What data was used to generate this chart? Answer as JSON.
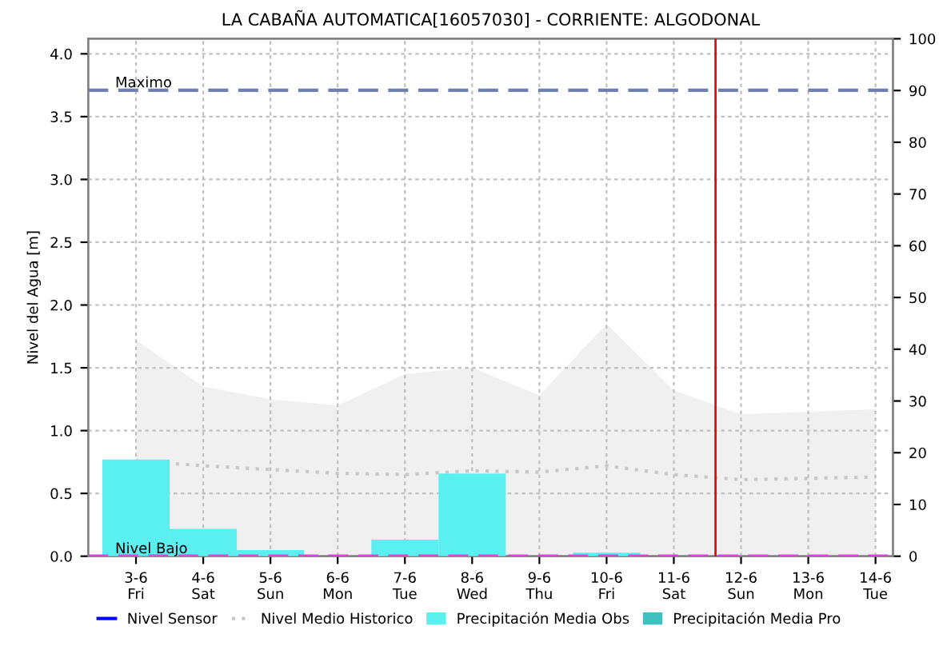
{
  "chart_data": {
    "type": "line",
    "title": "LA CABAÑA AUTOMATICA[16057030] - CORRIENTE: ALGODONAL",
    "ylabel": "Nivel del Agua [m]",
    "categories": [
      "3-6\nFri",
      "4-6\nSat",
      "5-6\nSun",
      "6-6\nMon",
      "7-6\nTue",
      "8-6\nWed",
      "9-6\nThu",
      "10-6\nFri",
      "11-6\nSat",
      "12-6\nSun",
      "13-6\nMon",
      "14-6\nTue"
    ],
    "ylim": [
      0,
      4.12
    ],
    "yticks": [
      {
        "value": 0,
        "label": "0.0"
      },
      {
        "value": 0.5,
        "label": "0.5"
      },
      {
        "value": 1,
        "label": "1.0"
      },
      {
        "value": 1.5,
        "label": "1.5"
      },
      {
        "value": 2,
        "label": "2.0"
      },
      {
        "value": 2.5,
        "label": "2.5"
      },
      {
        "value": 3,
        "label": "3.0"
      },
      {
        "value": 3.5,
        "label": "3.5"
      },
      {
        "value": 4,
        "label": "4.0"
      }
    ],
    "y2lim": [
      0,
      100
    ],
    "y2ticks": [
      0,
      10,
      20,
      30,
      40,
      50,
      60,
      70,
      80,
      90,
      100
    ],
    "grid": true,
    "legend": "bottom",
    "series": [
      {
        "type": "area",
        "color": "#f0f0f0",
        "values": [
          1.72,
          1.35,
          1.25,
          1.2,
          1.45,
          1.5,
          1.28,
          1.85,
          1.32,
          1.13,
          1.15,
          1.17
        ]
      },
      {
        "type": "bar",
        "name": "Precipitación Media Obs",
        "color": "#5bf0f0",
        "axis": "y2",
        "values": [
          18.7,
          5.3,
          1.2,
          0,
          3.2,
          16,
          0,
          0.7,
          0,
          null,
          null,
          null
        ]
      },
      {
        "type": "bar",
        "name": "Precipitación Media Pro",
        "color": "#40c0c0",
        "axis": "y2",
        "values": [
          null,
          null,
          null,
          null,
          null,
          null,
          null,
          null,
          null,
          null,
          null,
          null
        ]
      },
      {
        "name": "Nivel Sensor",
        "color": "#0000ff",
        "line_style": "solid",
        "values": [
          null,
          null,
          null,
          null,
          null,
          null,
          null,
          null,
          null,
          null,
          null,
          null
        ]
      },
      {
        "name": "Nivel Medio Historico",
        "color": "#c8c8c8",
        "line_style": "dotted",
        "values": [
          0.76,
          0.72,
          0.69,
          0.66,
          0.65,
          0.68,
          0.67,
          0.72,
          0.65,
          0.61,
          0.62,
          0.63
        ]
      }
    ],
    "ref_lines": [
      {
        "axis": "y",
        "value": 3.71,
        "label": "Maximo",
        "color": "#7080b0",
        "line_style": "dashed"
      },
      {
        "axis": "y",
        "value": 0,
        "label": "Nivel Bajo",
        "color": "#e040e0",
        "line_style": "dashed"
      },
      {
        "axis": "x",
        "value": "12-6\nSun",
        "color": "#ff0000",
        "line_style": "solid"
      }
    ]
  }
}
